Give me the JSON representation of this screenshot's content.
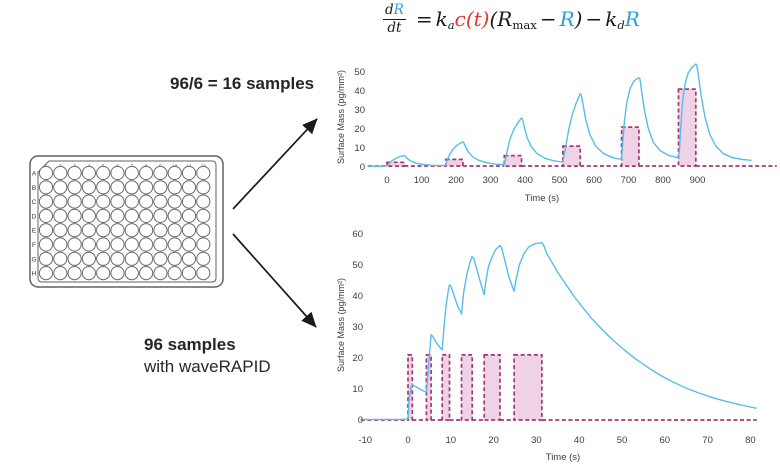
{
  "equation": {
    "frac_num": [
      {
        "t": "d"
      },
      {
        "t": "R",
        "color": "blue"
      }
    ],
    "frac_den": [
      {
        "t": "d"
      },
      {
        "t": "t"
      }
    ],
    "rhs": [
      {
        "t": "=",
        "op": true
      },
      {
        "t": "k"
      },
      {
        "t": "a",
        "sub": true
      },
      {
        "t": "c(t)",
        "color": "red"
      },
      {
        "t": "("
      },
      {
        "t": "R"
      },
      {
        "t": "max",
        "sub": true,
        "rm": true
      },
      {
        "t": "−",
        "op": true
      },
      {
        "t": "R",
        "color": "blue"
      },
      {
        "t": ")"
      },
      {
        "t": "−",
        "op": true
      },
      {
        "t": "k"
      },
      {
        "t": "d",
        "sub": true
      },
      {
        "t": "R",
        "color": "blue"
      }
    ],
    "colors": {
      "blue": "#2AA0D8",
      "red": "#E03A2F",
      "black": "#1a1a1a"
    }
  },
  "annotations": {
    "top_label": "96/6 = 16 samples",
    "bottom_label_bold": "96 samples",
    "bottom_label_regular": "with waveRAPID"
  },
  "plate": {
    "rows": [
      "A",
      "B",
      "C",
      "D",
      "E",
      "F",
      "G",
      "H"
    ],
    "cols": [
      "1",
      "2",
      "3",
      "4",
      "5",
      "6",
      "7",
      "8",
      "9",
      "10",
      "11",
      "12"
    ]
  },
  "chart_data": [
    {
      "type": "line",
      "title": "",
      "xlabel": "Time (s)",
      "ylabel": "Surface Mass (pg/mm²)",
      "xlim": [
        -55,
        1130
      ],
      "ylim": [
        0,
        57
      ],
      "xticks": [
        0,
        100,
        200,
        300,
        400,
        500,
        600,
        700,
        800,
        900
      ],
      "yticks": [
        0,
        10,
        20,
        30,
        40,
        50
      ],
      "grid": false,
      "legend": "none",
      "series": [
        {
          "name": "binding-response",
          "color": "#56BEEA",
          "points": [
            [
              -55,
              0.4
            ],
            [
              -25,
              0.4
            ],
            [
              -5,
              0.5
            ],
            [
              0,
              0.6
            ],
            [
              6,
              1.8
            ],
            [
              14,
              3.2
            ],
            [
              25,
              4.5
            ],
            [
              38,
              5.5
            ],
            [
              50,
              6
            ],
            [
              53,
              5.7
            ],
            [
              60,
              4.3
            ],
            [
              70,
              3
            ],
            [
              85,
              2
            ],
            [
              105,
              1.3
            ],
            [
              130,
              0.9
            ],
            [
              155,
              0.8
            ],
            [
              170,
              0.9
            ],
            [
              174,
              3.2
            ],
            [
              181,
              6.5
            ],
            [
              192,
              9.5
            ],
            [
              205,
              11.8
            ],
            [
              220,
              13.2
            ],
            [
              223,
              12.6
            ],
            [
              228,
              10.5
            ],
            [
              236,
              7.8
            ],
            [
              248,
              5.4
            ],
            [
              265,
              3.6
            ],
            [
              290,
              2.2
            ],
            [
              315,
              1.5
            ],
            [
              340,
              1.3
            ],
            [
              344,
              4.5
            ],
            [
              350,
              10
            ],
            [
              358,
              15.5
            ],
            [
              370,
              20.5
            ],
            [
              382,
              24
            ],
            [
              390,
              25.8
            ],
            [
              393,
              25.2
            ],
            [
              398,
              21
            ],
            [
              406,
              15.5
            ],
            [
              418,
              10.8
            ],
            [
              435,
              7
            ],
            [
              458,
              4.6
            ],
            [
              485,
              3.2
            ],
            [
              510,
              2.6
            ],
            [
              513,
              6
            ],
            [
              518,
              10.5
            ],
            [
              526,
              19
            ],
            [
              536,
              27
            ],
            [
              548,
              33.5
            ],
            [
              560,
              38.6
            ],
            [
              563,
              38
            ],
            [
              568,
              33
            ],
            [
              576,
              25
            ],
            [
              588,
              17
            ],
            [
              605,
              11
            ],
            [
              628,
              7
            ],
            [
              655,
              4.9
            ],
            [
              680,
              4
            ],
            [
              683,
              12
            ],
            [
              688,
              24
            ],
            [
              695,
              34
            ],
            [
              705,
              41.5
            ],
            [
              716,
              45.3
            ],
            [
              730,
              47
            ],
            [
              733,
              46.4
            ],
            [
              738,
              40
            ],
            [
              746,
              30
            ],
            [
              757,
              20.5
            ],
            [
              772,
              13
            ],
            [
              792,
              8.5
            ],
            [
              818,
              6
            ],
            [
              845,
              4.9
            ],
            [
              848,
              10
            ],
            [
              852,
              22
            ],
            [
              857,
              35
            ],
            [
              864,
              44
            ],
            [
              873,
              49.5
            ],
            [
              884,
              52.5
            ],
            [
              895,
              54.2
            ],
            [
              898,
              53.6
            ],
            [
              903,
              48
            ],
            [
              911,
              37
            ],
            [
              922,
              26
            ],
            [
              936,
              17
            ],
            [
              953,
              11
            ],
            [
              975,
              7
            ],
            [
              1000,
              5
            ],
            [
              1030,
              4
            ],
            [
              1055,
              3.5
            ]
          ]
        }
      ],
      "pulses": {
        "name": "injection-pulses",
        "stroke": "#A5386E",
        "fill": "#D689BC",
        "fill_opacity": 0.38,
        "baseline": 0.5,
        "boxes": [
          [
            0,
            50,
            2.5
          ],
          [
            170,
            220,
            4
          ],
          [
            340,
            390,
            6
          ],
          [
            510,
            560,
            11
          ],
          [
            680,
            730,
            21
          ],
          [
            845,
            895,
            41
          ]
        ]
      }
    },
    {
      "type": "line",
      "title": "",
      "xlabel": "Time (s)",
      "ylabel": "Surface Mass (pg/mm²)",
      "xlim": [
        -11,
        81.5
      ],
      "ylim": [
        0,
        60
      ],
      "xticks": [
        -10,
        0,
        10,
        20,
        30,
        40,
        50,
        60,
        70,
        80
      ],
      "yticks": [
        0,
        10,
        20,
        30,
        40,
        50,
        60
      ],
      "grid": false,
      "legend": "none",
      "series": [
        {
          "name": "waverapid-response",
          "color": "#56BEEA",
          "points": [
            [
              -11,
              0.2
            ],
            [
              -2,
              0.2
            ],
            [
              0,
              0.3
            ],
            [
              0.3,
              7
            ],
            [
              0.7,
              10.5
            ],
            [
              1,
              11.4
            ],
            [
              1.5,
              11
            ],
            [
              2.5,
              10.2
            ],
            [
              3.5,
              9.5
            ],
            [
              4.3,
              9
            ],
            [
              4.7,
              15
            ],
            [
              5,
              21
            ],
            [
              5.4,
              27.5
            ],
            [
              5.8,
              27
            ],
            [
              6.6,
              25
            ],
            [
              7.4,
              23.5
            ],
            [
              8,
              22.6
            ],
            [
              8.4,
              30
            ],
            [
              8.9,
              37
            ],
            [
              9.4,
              41.5
            ],
            [
              9.7,
              43.6
            ],
            [
              10.1,
              43
            ],
            [
              10.8,
              40
            ],
            [
              11.6,
              36.8
            ],
            [
              12.5,
              34.2
            ],
            [
              13,
              41
            ],
            [
              13.7,
              46.5
            ],
            [
              14.4,
              50.5
            ],
            [
              15,
              52.7
            ],
            [
              15.4,
              52
            ],
            [
              16.2,
              48
            ],
            [
              17,
              44
            ],
            [
              17.8,
              40.5
            ],
            [
              18.2,
              45
            ],
            [
              18.8,
              49.5
            ],
            [
              19.6,
              52.5
            ],
            [
              20.5,
              55
            ],
            [
              21.5,
              56.3
            ],
            [
              21.9,
              55.5
            ],
            [
              22.7,
              51
            ],
            [
              23.6,
              46
            ],
            [
              24.8,
              41.5
            ],
            [
              25.2,
              45
            ],
            [
              26,
              50
            ],
            [
              27,
              53.5
            ],
            [
              28.2,
              55.8
            ],
            [
              29.5,
              56.8
            ],
            [
              31.3,
              57.2
            ],
            [
              31.8,
              56
            ],
            [
              32.5,
              53.5
            ],
            [
              34,
              50
            ],
            [
              35,
              47.6
            ],
            [
              37,
              43.5
            ],
            [
              39,
              39.5
            ],
            [
              41,
              36
            ],
            [
              43,
              32.6
            ],
            [
              45,
              29.7
            ],
            [
              47,
              26.9
            ],
            [
              50,
              23.2
            ],
            [
              53,
              19.9
            ],
            [
              56,
              17
            ],
            [
              59,
              14.4
            ],
            [
              62,
              12.2
            ],
            [
              65,
              10.3
            ],
            [
              68,
              8.7
            ],
            [
              71,
              7.3
            ],
            [
              74,
              6.1
            ],
            [
              77,
              5.1
            ],
            [
              80,
              4.2
            ],
            [
              81.3,
              3.8
            ]
          ]
        }
      ],
      "pulses": {
        "name": "injection-pulses",
        "stroke": "#A5386E",
        "fill": "#D689BC",
        "fill_opacity": 0.38,
        "baseline": 0,
        "boxes": [
          [
            0,
            1,
            21
          ],
          [
            4.3,
            5.4,
            21
          ],
          [
            8,
            9.7,
            21
          ],
          [
            12.5,
            15,
            21
          ],
          [
            17.8,
            21.5,
            21
          ],
          [
            24.8,
            31.3,
            21
          ]
        ]
      }
    }
  ],
  "style": {
    "tick_color": "#3d3d3d",
    "axis_label_color": "#3d3d3d",
    "arrow_color": "#1a1a1a",
    "plate_stroke": "#606060"
  }
}
